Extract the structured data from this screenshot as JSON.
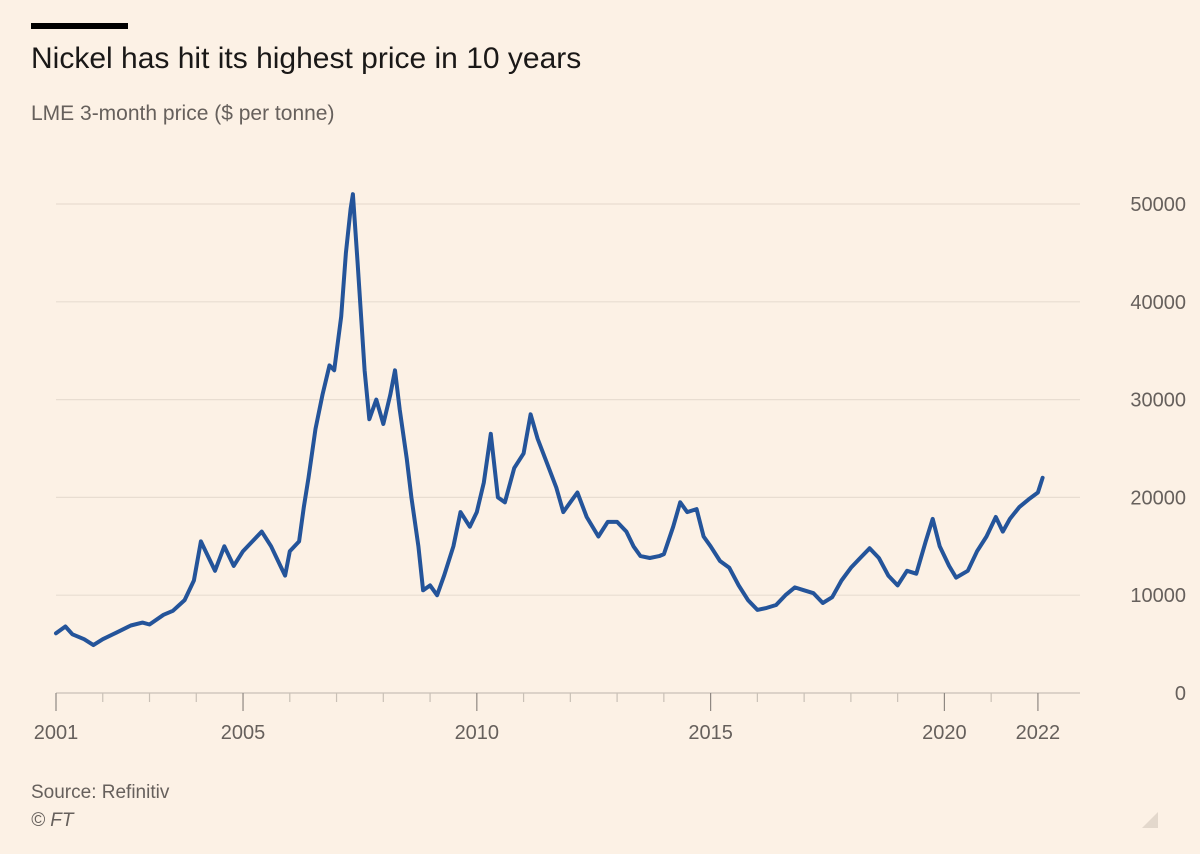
{
  "header": {
    "title": "Nickel has hit its highest price in 10 years",
    "subtitle": "LME 3-month price ($ per tonne)"
  },
  "footer": {
    "source": "Source: Refinitiv",
    "copyright": "© FT"
  },
  "colors": {
    "background": "#fcf1e5",
    "line": "#24549a",
    "grid": "#e8ddd1",
    "text": "#66605c"
  },
  "chart_data": {
    "type": "line",
    "title": "Nickel has hit its highest price in 10 years",
    "subtitle": "LME 3-month price ($ per tonne)",
    "xlabel": "",
    "ylabel": "",
    "xlim": [
      2001,
      2022.9
    ],
    "ylim": [
      0,
      50000
    ],
    "grid": true,
    "y_ticks": [
      "0",
      "10000",
      "20000",
      "30000",
      "40000",
      "50000"
    ],
    "x_ticks": [
      "2001",
      "2005",
      "2010",
      "2015",
      "2020",
      "2022"
    ],
    "series": [
      {
        "values": [
          [
            2001.0,
            6100
          ],
          [
            2001.2,
            6800
          ],
          [
            2001.35,
            6000
          ],
          [
            2001.6,
            5500
          ],
          [
            2001.8,
            4900
          ],
          [
            2002.0,
            5500
          ],
          [
            2002.3,
            6200
          ],
          [
            2002.6,
            6900
          ],
          [
            2002.85,
            7200
          ],
          [
            2003.0,
            7000
          ],
          [
            2003.3,
            8000
          ],
          [
            2003.5,
            8400
          ],
          [
            2003.75,
            9500
          ],
          [
            2003.95,
            11500
          ],
          [
            2004.1,
            15500
          ],
          [
            2004.2,
            14500
          ],
          [
            2004.4,
            12500
          ],
          [
            2004.6,
            15000
          ],
          [
            2004.8,
            13000
          ],
          [
            2005.0,
            14500
          ],
          [
            2005.2,
            15500
          ],
          [
            2005.4,
            16500
          ],
          [
            2005.6,
            15000
          ],
          [
            2005.8,
            13000
          ],
          [
            2005.9,
            12000
          ],
          [
            2006.0,
            14500
          ],
          [
            2006.2,
            15500
          ],
          [
            2006.3,
            19000
          ],
          [
            2006.4,
            22000
          ],
          [
            2006.55,
            27000
          ],
          [
            2006.7,
            30500
          ],
          [
            2006.85,
            33500
          ],
          [
            2006.95,
            33000
          ],
          [
            2007.1,
            38500
          ],
          [
            2007.2,
            45000
          ],
          [
            2007.3,
            49500
          ],
          [
            2007.35,
            51000
          ],
          [
            2007.45,
            44000
          ],
          [
            2007.6,
            33000
          ],
          [
            2007.7,
            28000
          ],
          [
            2007.85,
            30000
          ],
          [
            2008.0,
            27500
          ],
          [
            2008.15,
            30500
          ],
          [
            2008.25,
            33000
          ],
          [
            2008.35,
            29000
          ],
          [
            2008.5,
            24000
          ],
          [
            2008.6,
            20000
          ],
          [
            2008.75,
            15000
          ],
          [
            2008.85,
            10500
          ],
          [
            2009.0,
            11000
          ],
          [
            2009.15,
            10000
          ],
          [
            2009.3,
            12000
          ],
          [
            2009.5,
            15000
          ],
          [
            2009.65,
            18500
          ],
          [
            2009.85,
            17000
          ],
          [
            2010.0,
            18500
          ],
          [
            2010.15,
            21500
          ],
          [
            2010.3,
            26500
          ],
          [
            2010.45,
            20000
          ],
          [
            2010.6,
            19500
          ],
          [
            2010.8,
            23000
          ],
          [
            2011.0,
            24500
          ],
          [
            2011.15,
            28500
          ],
          [
            2011.3,
            26000
          ],
          [
            2011.5,
            23500
          ],
          [
            2011.7,
            21000
          ],
          [
            2011.85,
            18500
          ],
          [
            2012.0,
            19500
          ],
          [
            2012.15,
            20500
          ],
          [
            2012.35,
            18000
          ],
          [
            2012.6,
            16000
          ],
          [
            2012.8,
            17500
          ],
          [
            2013.0,
            17500
          ],
          [
            2013.2,
            16500
          ],
          [
            2013.35,
            15000
          ],
          [
            2013.5,
            14000
          ],
          [
            2013.7,
            13800
          ],
          [
            2013.9,
            14000
          ],
          [
            2014.0,
            14200
          ],
          [
            2014.2,
            17000
          ],
          [
            2014.35,
            19500
          ],
          [
            2014.5,
            18500
          ],
          [
            2014.7,
            18800
          ],
          [
            2014.85,
            16000
          ],
          [
            2015.0,
            15000
          ],
          [
            2015.2,
            13500
          ],
          [
            2015.4,
            12800
          ],
          [
            2015.6,
            11000
          ],
          [
            2015.8,
            9500
          ],
          [
            2016.0,
            8500
          ],
          [
            2016.2,
            8700
          ],
          [
            2016.4,
            9000
          ],
          [
            2016.6,
            10000
          ],
          [
            2016.8,
            10800
          ],
          [
            2017.0,
            10500
          ],
          [
            2017.2,
            10200
          ],
          [
            2017.4,
            9200
          ],
          [
            2017.6,
            9800
          ],
          [
            2017.8,
            11500
          ],
          [
            2018.0,
            12800
          ],
          [
            2018.2,
            13800
          ],
          [
            2018.4,
            14800
          ],
          [
            2018.6,
            13800
          ],
          [
            2018.8,
            12000
          ],
          [
            2019.0,
            11000
          ],
          [
            2019.2,
            12500
          ],
          [
            2019.4,
            12200
          ],
          [
            2019.6,
            15500
          ],
          [
            2019.75,
            17800
          ],
          [
            2019.9,
            15000
          ],
          [
            2020.1,
            13000
          ],
          [
            2020.25,
            11800
          ],
          [
            2020.5,
            12500
          ],
          [
            2020.7,
            14500
          ],
          [
            2020.9,
            16000
          ],
          [
            2021.1,
            18000
          ],
          [
            2021.25,
            16500
          ],
          [
            2021.4,
            17800
          ],
          [
            2021.6,
            19000
          ],
          [
            2021.8,
            19800
          ],
          [
            2022.0,
            20500
          ],
          [
            2022.1,
            22000
          ]
        ]
      }
    ]
  }
}
